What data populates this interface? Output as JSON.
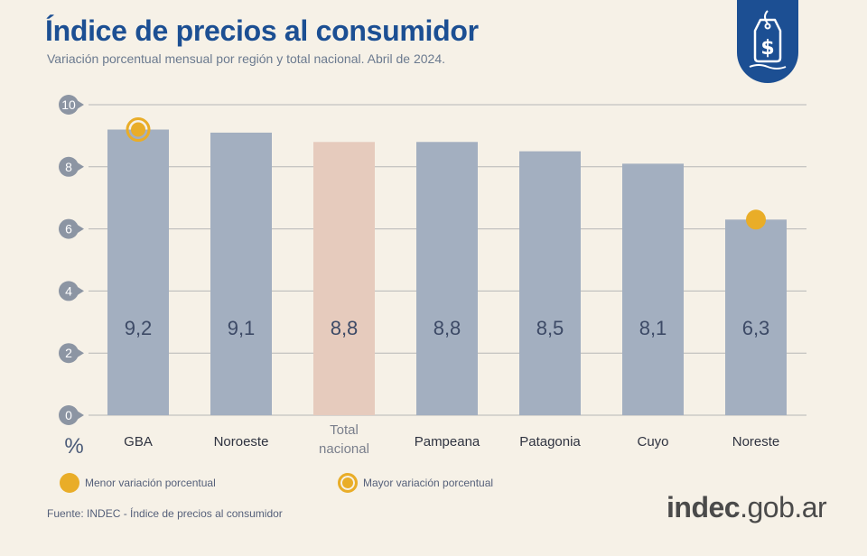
{
  "header": {
    "title": "Índice de precios al consumidor",
    "subtitle": "Variación porcentual mensual por región y total nacional. Abril de 2024."
  },
  "colors": {
    "title": "#1c4f93",
    "bar": "#a3afc0",
    "bar_highlight": "#e6cbbd",
    "marker": "#e9ad28",
    "grid": "#b7b7b7",
    "tick_bubble": "#8c95a3"
  },
  "chart_data": {
    "type": "bar",
    "title": "Índice de precios al consumidor",
    "ylabel": "%",
    "ylim": [
      0,
      10
    ],
    "yticks": [
      "0",
      "2",
      "4",
      "6",
      "8",
      "10"
    ],
    "grid": true,
    "categories": [
      "GBA",
      "Noroeste",
      "Total nacional",
      "Pampeana",
      "Patagonia",
      "Cuyo",
      "Noreste"
    ],
    "category_lines": [
      [
        "GBA"
      ],
      [
        "Noroeste"
      ],
      [
        "Total",
        "nacional"
      ],
      [
        "Pampeana"
      ],
      [
        "Patagonia"
      ],
      [
        "Cuyo"
      ],
      [
        "Noreste"
      ]
    ],
    "values": [
      9.2,
      9.1,
      8.8,
      8.8,
      8.5,
      8.1,
      6.3
    ],
    "value_labels": [
      "9,2",
      "9,1",
      "8,8",
      "8,8",
      "8,5",
      "8,1",
      "6,3"
    ],
    "highlight_index": 2,
    "max_marker_index": 0,
    "min_marker_index": 6
  },
  "legend": {
    "min_label": "Menor variación porcentual",
    "max_label": "Mayor variación porcentual"
  },
  "footer": {
    "source": "Fuente: INDEC - Índice de precios al consumidor",
    "brand_bold": "indec",
    "brand_rest": ".gob.ar"
  },
  "icons": {
    "badge": "price-tag-dollar-icon"
  }
}
